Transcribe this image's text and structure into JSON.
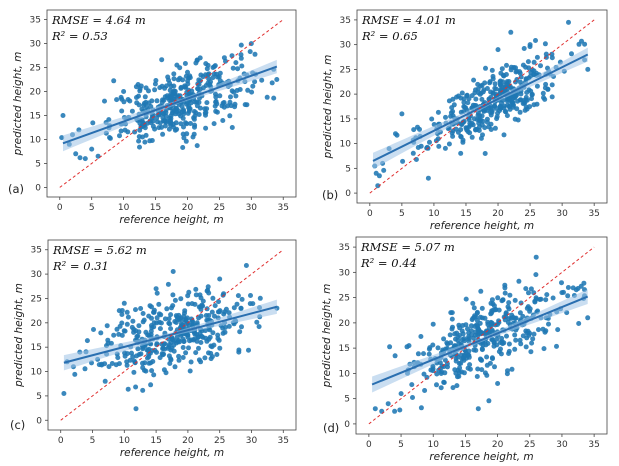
{
  "figure": {
    "point_color": "#1f77b4",
    "fit_color": "#2a6fb0",
    "band_color": "#9ec3e6",
    "identity_color": "#e03030",
    "frame_color": "#444444"
  },
  "chart_data": [
    {
      "type": "scatter",
      "panel_label": "(a)",
      "xlabel": "reference height, m",
      "ylabel": "predicted height, m",
      "xlim": [
        -2,
        37
      ],
      "ylim": [
        -2,
        37
      ],
      "xticks": [
        0,
        5,
        10,
        15,
        20,
        25,
        30,
        35
      ],
      "yticks": [
        0,
        5,
        10,
        15,
        20,
        25,
        30,
        35
      ],
      "annotations": [
        "RMSE = 4.64 m",
        "R² = 0.53"
      ],
      "rmse_text": "RMSE = 4.64 m",
      "r2_text": "R² = 0.53",
      "fit_line": {
        "x": [
          0.5,
          34
        ],
        "y": [
          9.2,
          25.2
        ]
      },
      "identity_line": {
        "x": [
          0,
          35
        ],
        "y": [
          0,
          35
        ]
      },
      "cloud": {
        "x_mean": 19,
        "x_sd": 5.5,
        "slope": 0.47,
        "intercept": 9.0,
        "noise_sd": 3.4,
        "n": 380
      },
      "points": [
        {
          "x": 0.5,
          "y": 15
        },
        {
          "x": 1.5,
          "y": 9
        },
        {
          "x": 2,
          "y": 11
        },
        {
          "x": 3,
          "y": 12
        },
        {
          "x": 2.5,
          "y": 7
        },
        {
          "x": 4,
          "y": 6
        },
        {
          "x": 5,
          "y": 8
        },
        {
          "x": 6,
          "y": 6.5
        },
        {
          "x": 7,
          "y": 18
        },
        {
          "x": 10,
          "y": 20
        },
        {
          "x": 12,
          "y": 21
        },
        {
          "x": 30,
          "y": 30
        },
        {
          "x": 34,
          "y": 22.5
        },
        {
          "x": 22,
          "y": 27
        },
        {
          "x": 24,
          "y": 25
        },
        {
          "x": 20,
          "y": 24
        }
      ]
    },
    {
      "type": "scatter",
      "panel_label": "(b)",
      "xlabel": "reference height, m",
      "ylabel": "predicted height, m",
      "xlim": [
        -2,
        37
      ],
      "ylim": [
        -2,
        37
      ],
      "xticks": [
        0,
        5,
        10,
        15,
        20,
        25,
        30,
        35
      ],
      "yticks": [
        0,
        5,
        10,
        15,
        20,
        25,
        30,
        35
      ],
      "annotations": [
        "RMSE = 4.01 m",
        "R² = 0.65"
      ],
      "rmse_text": "RMSE = 4.01 m",
      "r2_text": "R² = 0.65",
      "fit_line": {
        "x": [
          0.5,
          34
        ],
        "y": [
          6.5,
          28.0
        ]
      },
      "identity_line": {
        "x": [
          0,
          35
        ],
        "y": [
          0,
          35
        ]
      },
      "cloud": {
        "x_mean": 19,
        "x_sd": 5.5,
        "slope": 0.64,
        "intercept": 6.2,
        "noise_sd": 3.0,
        "n": 380
      },
      "points": [
        {
          "x": 1,
          "y": 4
        },
        {
          "x": 1.5,
          "y": 3.5
        },
        {
          "x": 2,
          "y": 6
        },
        {
          "x": 4,
          "y": 12
        },
        {
          "x": 5,
          "y": 16
        },
        {
          "x": 3,
          "y": 9
        },
        {
          "x": 31,
          "y": 34.5
        },
        {
          "x": 22,
          "y": 32.5
        },
        {
          "x": 34,
          "y": 25
        },
        {
          "x": 25,
          "y": 30
        },
        {
          "x": 20,
          "y": 29
        },
        {
          "x": 18,
          "y": 8
        }
      ]
    },
    {
      "type": "scatter",
      "panel_label": "(c)",
      "xlabel": "reference height, m",
      "ylabel": "predicted height, m",
      "xlim": [
        -2,
        37
      ],
      "ylim": [
        -2,
        37
      ],
      "xticks": [
        0,
        5,
        10,
        15,
        20,
        25,
        30,
        35
      ],
      "yticks": [
        0,
        5,
        10,
        15,
        20,
        25,
        30,
        35
      ],
      "annotations": [
        "RMSE = 5.62 m",
        "R² = 0.31"
      ],
      "rmse_text": "RMSE = 5.62 m",
      "r2_text": "R² = 0.31",
      "fit_line": {
        "x": [
          0.5,
          34
        ],
        "y": [
          11.8,
          23.3
        ]
      },
      "identity_line": {
        "x": [
          0,
          35
        ],
        "y": [
          0,
          35
        ]
      },
      "cloud": {
        "x_mean": 18,
        "x_sd": 6.0,
        "slope": 0.34,
        "intercept": 11.6,
        "noise_sd": 4.0,
        "n": 380
      },
      "points": [
        {
          "x": 0.5,
          "y": 5.5
        },
        {
          "x": 1,
          "y": 12
        },
        {
          "x": 2,
          "y": 11
        },
        {
          "x": 3,
          "y": 14
        },
        {
          "x": 7,
          "y": 8
        },
        {
          "x": 10,
          "y": 24
        },
        {
          "x": 15,
          "y": 27
        },
        {
          "x": 25,
          "y": 29
        },
        {
          "x": 34,
          "y": 23
        },
        {
          "x": 28,
          "y": 14
        },
        {
          "x": 22,
          "y": 12
        }
      ]
    },
    {
      "type": "scatter",
      "panel_label": "(d)",
      "xlabel": "reference height, m",
      "ylabel": "predicted height, m",
      "xlim": [
        -2,
        37
      ],
      "ylim": [
        -2,
        37
      ],
      "xticks": [
        0,
        5,
        10,
        15,
        20,
        25,
        30,
        35
      ],
      "yticks": [
        0,
        5,
        10,
        15,
        20,
        25,
        30,
        35
      ],
      "annotations": [
        "RMSE = 5.07 m",
        "R² = 0.44"
      ],
      "rmse_text": "RMSE = 5.07 m",
      "r2_text": "R² = 0.44",
      "fit_line": {
        "x": [
          0.5,
          34
        ],
        "y": [
          7.8,
          25.2
        ]
      },
      "identity_line": {
        "x": [
          0,
          35
        ],
        "y": [
          0,
          35
        ]
      },
      "cloud": {
        "x_mean": 18,
        "x_sd": 6.0,
        "slope": 0.52,
        "intercept": 7.6,
        "noise_sd": 3.8,
        "n": 380
      },
      "points": [
        {
          "x": 1,
          "y": 3
        },
        {
          "x": 2,
          "y": 2.5
        },
        {
          "x": 3,
          "y": 4
        },
        {
          "x": 4,
          "y": 2.5
        },
        {
          "x": 5,
          "y": 6
        },
        {
          "x": 30,
          "y": 26
        },
        {
          "x": 31,
          "y": 27
        },
        {
          "x": 34,
          "y": 21
        },
        {
          "x": 26,
          "y": 33
        },
        {
          "x": 17,
          "y": 3
        },
        {
          "x": 20,
          "y": 8
        }
      ]
    }
  ]
}
